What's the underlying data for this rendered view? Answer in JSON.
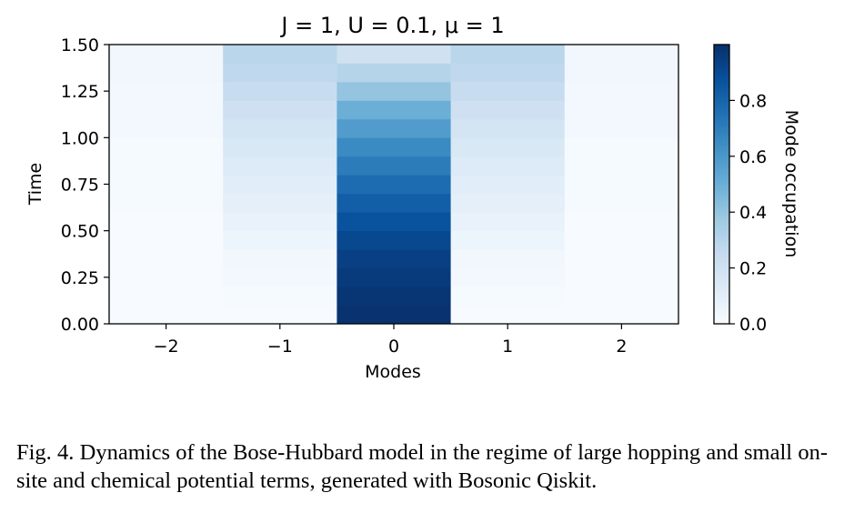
{
  "chart_data": {
    "type": "heatmap",
    "title": "J = 1, U = 0.1, μ = 1",
    "xlabel": "Modes",
    "ylabel": "Time",
    "colorbar_label": "Mode occupation",
    "colormap": "Blues",
    "x_ticks": [
      "−2",
      "−1",
      "0",
      "1",
      "2"
    ],
    "y_ticks": [
      "0.00",
      "0.25",
      "0.50",
      "0.75",
      "1.00",
      "1.25",
      "1.50"
    ],
    "colorbar_ticks": [
      "0.0",
      "0.2",
      "0.4",
      "0.6",
      "0.8"
    ],
    "colorbar_tick_values": [
      0.0,
      0.2,
      0.4,
      0.6,
      0.8
    ],
    "xlim": [
      -2.5,
      2.5
    ],
    "ylim": [
      0,
      1.5
    ],
    "color_range": [
      0,
      1
    ],
    "modes": [
      -2,
      -1,
      0,
      1,
      2
    ],
    "time_steps": [
      0.0,
      0.1,
      0.2,
      0.3,
      0.4,
      0.5,
      0.6,
      0.7,
      0.8,
      0.9,
      1.0,
      1.1,
      1.2,
      1.3,
      1.4
    ],
    "time_step": 0.1,
    "values": [
      [
        0.0,
        0.0,
        0.99,
        0.0,
        0.0
      ],
      [
        0.0,
        0.01,
        0.98,
        0.01,
        0.0
      ],
      [
        0.0,
        0.02,
        0.96,
        0.02,
        0.0
      ],
      [
        0.0,
        0.03,
        0.94,
        0.03,
        0.0
      ],
      [
        0.0,
        0.05,
        0.91,
        0.05,
        0.0
      ],
      [
        0.0,
        0.07,
        0.87,
        0.07,
        0.0
      ],
      [
        0.01,
        0.09,
        0.82,
        0.09,
        0.01
      ],
      [
        0.01,
        0.11,
        0.77,
        0.11,
        0.01
      ],
      [
        0.01,
        0.13,
        0.71,
        0.13,
        0.01
      ],
      [
        0.01,
        0.15,
        0.65,
        0.15,
        0.01
      ],
      [
        0.02,
        0.18,
        0.58,
        0.18,
        0.02
      ],
      [
        0.02,
        0.21,
        0.5,
        0.21,
        0.02
      ],
      [
        0.02,
        0.24,
        0.4,
        0.24,
        0.02
      ],
      [
        0.03,
        0.27,
        0.3,
        0.27,
        0.03
      ],
      [
        0.03,
        0.29,
        0.2,
        0.29,
        0.03
      ]
    ]
  },
  "caption": "Fig. 4.  Dynamics of the Bose-Hubbard model in the regime of large hopping and small on-site and chemical potential terms, generated with Bosonic Qiskit."
}
